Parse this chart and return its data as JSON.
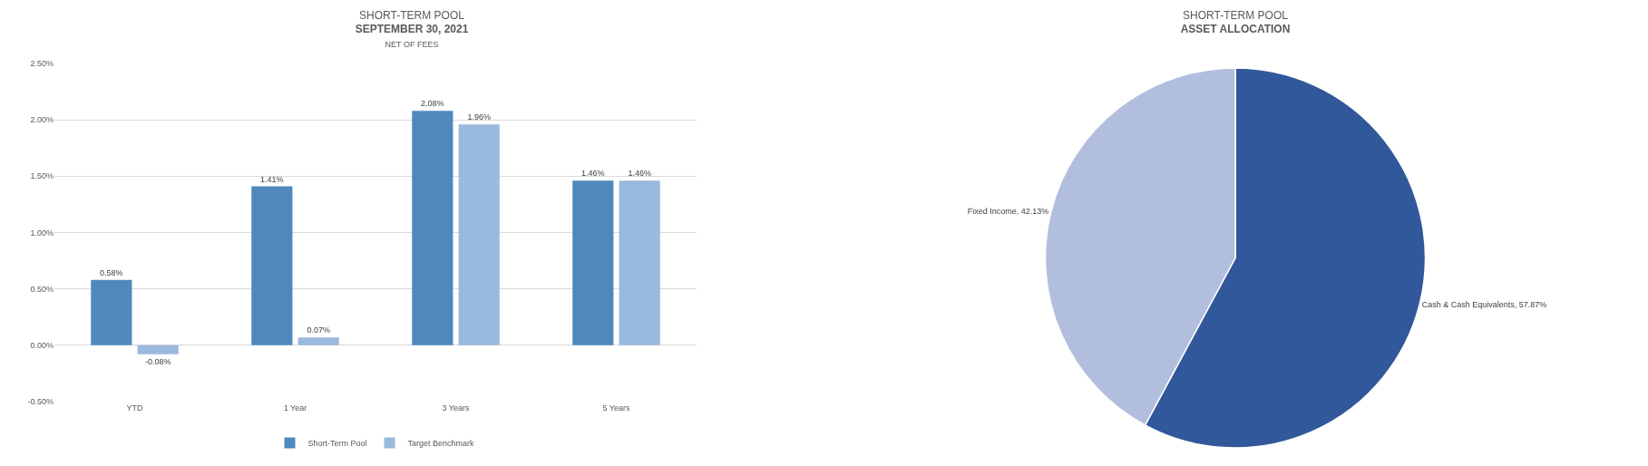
{
  "chart_data": [
    {
      "type": "bar",
      "title": "SHORT-TERM POOL\nSEPTEMBER 30, 2021",
      "subtitle": "NET OF FEES",
      "categories": [
        "YTD",
        "1 Year",
        "3 Years",
        "5 Years"
      ],
      "series": [
        {
          "name": "Short-Term Pool",
          "color": "#4f88bd",
          "values": [
            0.58,
            1.41,
            2.08,
            1.46
          ],
          "value_labels": [
            "0.58%",
            "1.41%",
            "2.08%",
            "1.46%"
          ]
        },
        {
          "name": "Target Benchmark",
          "color": "#9ab9df",
          "values": [
            -0.08,
            0.07,
            1.96,
            1.46
          ],
          "value_labels": [
            "-0.08%",
            "0.07%",
            "1.96%",
            "1.46%"
          ]
        }
      ],
      "ylim": [
        -0.5,
        2.5
      ],
      "yticks": [
        {
          "value": -0.5,
          "label": "-0.50%"
        },
        {
          "value": 0,
          "label": "0.00%"
        },
        {
          "value": 0.5,
          "label": "0.50%"
        },
        {
          "value": 1,
          "label": "1.00%"
        },
        {
          "value": 1.5,
          "label": "1.50%"
        },
        {
          "value": 2,
          "label": "2.00%"
        },
        {
          "value": 2.5,
          "label": "2.50%"
        }
      ],
      "grid": "y",
      "legend": "bottom"
    },
    {
      "type": "pie",
      "title": "SHORT-TERM POOL\nASSET ALLOCATION",
      "categories": [
        "Cash & Cash Equivalents",
        "Fixed Income"
      ],
      "values": [
        57.87,
        42.13
      ],
      "value_labels": [
        "57.87%",
        "42.13%"
      ],
      "colors": [
        "#31589a",
        "#b2bedd"
      ],
      "legend": false
    }
  ]
}
